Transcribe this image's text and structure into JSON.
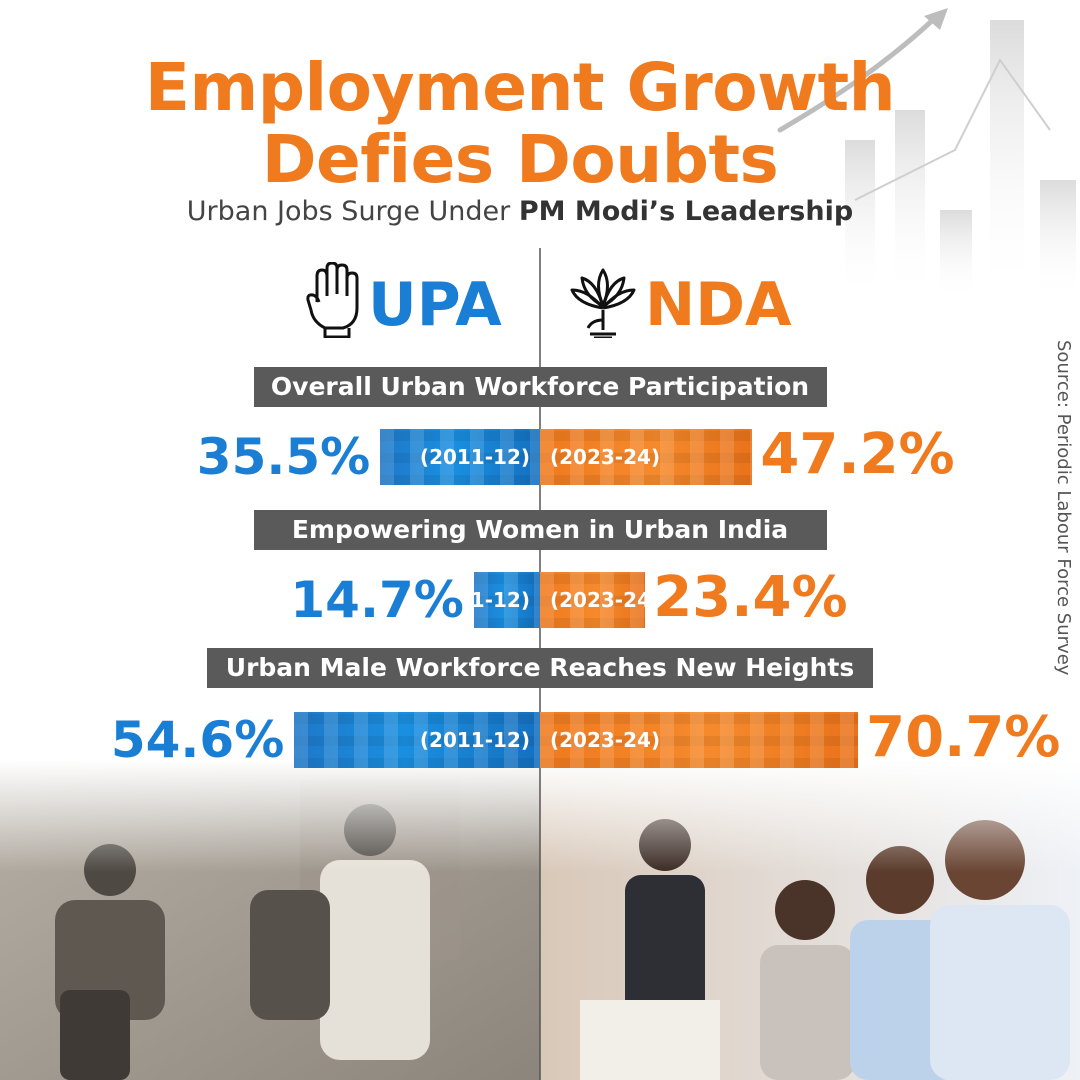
{
  "header": {
    "title_line1": "Employment Growth",
    "title_line2": "Defies Doubts",
    "subtitle_prefix": "Urban Jobs Surge Under ",
    "subtitle_bold": "PM Modi’s Leadership"
  },
  "parties": {
    "left": {
      "name": "UPA",
      "icon": "hand-icon"
    },
    "right": {
      "name": "NDA",
      "icon": "lotus-icon"
    }
  },
  "source": "Source: Periodic Labour Force Survey",
  "colors": {
    "upa": "#1a7fd4",
    "nda": "#F07A1E",
    "header_bg": "#5a5a5a"
  },
  "chart_data": {
    "type": "bar",
    "title": "Employment Growth Defies Doubts",
    "subtitle": "Urban Jobs Surge Under PM Modi’s Leadership",
    "series": [
      {
        "name": "UPA",
        "period": "(2011-12)"
      },
      {
        "name": "NDA",
        "period": "(2023-24)"
      }
    ],
    "categories": [
      "Overall Urban Workforce Participation",
      "Empowering Women in Urban India",
      "Urban Male Workforce Reaches New Heights"
    ],
    "values": {
      "UPA": [
        35.5,
        14.7,
        54.6
      ],
      "NDA": [
        47.2,
        23.4,
        70.7
      ]
    },
    "value_labels": {
      "UPA": [
        "35.5%",
        "14.7%",
        "54.6%"
      ],
      "NDA": [
        "47.2%",
        "23.4%",
        "70.7%"
      ]
    },
    "unit": "%"
  }
}
